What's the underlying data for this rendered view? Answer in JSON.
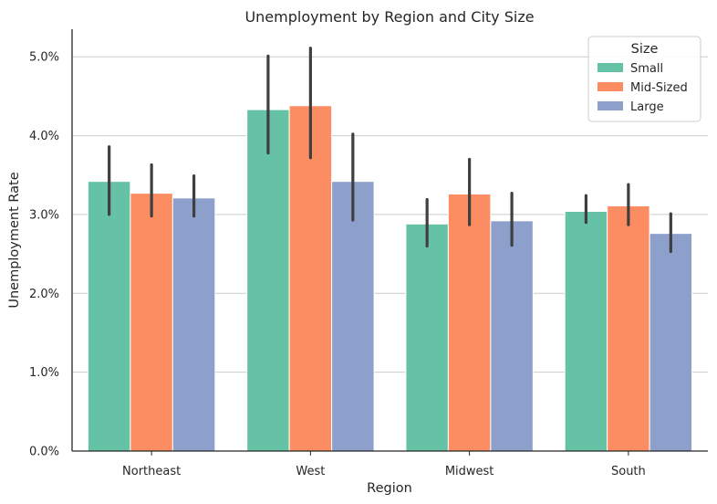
{
  "chart_data": {
    "type": "bar",
    "title": "Unemployment by Region and City Size",
    "xlabel": "Region",
    "ylabel": "Unemployment Rate",
    "categories": [
      "Northeast",
      "West",
      "Midwest",
      "South"
    ],
    "ylim": [
      0,
      0.0535
    ],
    "yticks": [
      0.0,
      0.01,
      0.02,
      0.03,
      0.04,
      0.05
    ],
    "ytick_labels": [
      "0.0%",
      "1.0%",
      "2.0%",
      "3.0%",
      "4.0%",
      "5.0%"
    ],
    "grid": "horizontal",
    "legend": {
      "title": "Size",
      "placement": "top-right"
    },
    "series": [
      {
        "name": "Small",
        "color": "#66c2a5",
        "values": [
          0.0342,
          0.0433,
          0.0288,
          0.0304
        ],
        "ci_low": [
          0.03,
          0.0378,
          0.026,
          0.029
        ],
        "ci_high": [
          0.0386,
          0.0501,
          0.0319,
          0.0324
        ]
      },
      {
        "name": "Mid-Sized",
        "color": "#fc8d62",
        "values": [
          0.0327,
          0.0438,
          0.0326,
          0.0311
        ],
        "ci_low": [
          0.0298,
          0.0372,
          0.0287,
          0.0287
        ],
        "ci_high": [
          0.0363,
          0.0511,
          0.037,
          0.0338
        ]
      },
      {
        "name": "Large",
        "color": "#8da0cb",
        "values": [
          0.0321,
          0.0342,
          0.0292,
          0.0276
        ],
        "ci_low": [
          0.0298,
          0.0293,
          0.0261,
          0.0253
        ],
        "ci_high": [
          0.0349,
          0.0402,
          0.0327,
          0.0301
        ]
      }
    ]
  }
}
